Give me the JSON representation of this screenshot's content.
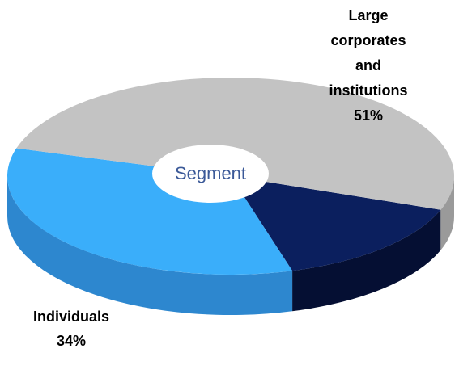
{
  "chart_data": {
    "type": "pie3d",
    "center_label": "Segment",
    "categories": [
      "Large corporates and institutions",
      "Individuals",
      null
    ],
    "values": [
      51,
      34,
      15
    ],
    "value_labels": [
      "51%",
      "34%",
      null
    ],
    "colors": [
      "#c3c3c3",
      "#3aaefa",
      "#0b1f5e"
    ],
    "side_colors": [
      "#9a9a9a",
      "#2d87cf",
      "#050f33"
    ]
  }
}
